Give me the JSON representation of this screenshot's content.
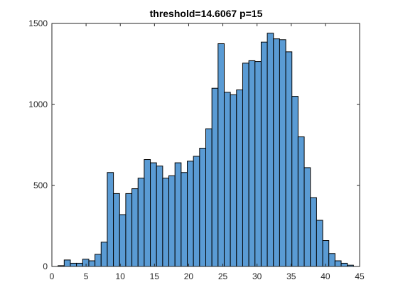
{
  "colors": {
    "bar_fill": "#5a9bd4",
    "bar_stroke": "#000000",
    "axes": "#262626",
    "background": "#ffffff"
  },
  "chart_data": {
    "type": "bar",
    "title": "threshold=14.6067 p=15",
    "xlabel": "",
    "ylabel": "",
    "xlim": [
      0,
      45
    ],
    "ylim": [
      0,
      1500
    ],
    "grid": false,
    "box": true,
    "xticks": [
      0,
      5,
      10,
      15,
      20,
      25,
      30,
      35,
      40,
      45
    ],
    "yticks": [
      0,
      500,
      1000,
      1500
    ],
    "bin_width": 0.9,
    "bin_edges_start": 0.9,
    "values": [
      5,
      40,
      20,
      20,
      45,
      35,
      75,
      150,
      580,
      450,
      320,
      450,
      480,
      545,
      660,
      640,
      620,
      545,
      560,
      640,
      580,
      650,
      680,
      730,
      850,
      1100,
      1375,
      1075,
      1060,
      1090,
      1255,
      1270,
      1265,
      1385,
      1440,
      1405,
      1400,
      1325,
      1050,
      800,
      610,
      425,
      285,
      160,
      80,
      35,
      20,
      8
    ]
  }
}
